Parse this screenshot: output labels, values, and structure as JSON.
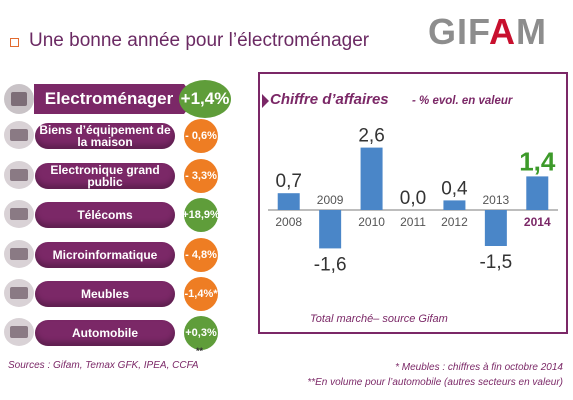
{
  "header": {
    "title": "Une bonne année pour l’électroménager",
    "logo_text_a": "GIF",
    "logo_text_b": "A",
    "logo_text_c": "M",
    "accent_color": "#e26b2f"
  },
  "categories": {
    "main": {
      "label": "Electroménager",
      "value": "+1,4%",
      "icon": "appliance-icon",
      "badge_color": "#5f9d3a"
    },
    "items": [
      {
        "label": "Biens d’équipement de la maison",
        "value": "- 0,6%",
        "icon": "home-equipment-icon",
        "badge_color": "#ee7d23"
      },
      {
        "label": "Electronique grand public",
        "value": "- 3,3%",
        "icon": "tv-icon",
        "badge_color": "#ee7d23"
      },
      {
        "label": "Télécoms",
        "value": "+18,9%",
        "icon": "phone-icon",
        "badge_color": "#5f9d3a"
      },
      {
        "label": "Microinformatique",
        "value": "- 4,8%",
        "icon": "laptop-icon",
        "badge_color": "#ee7d23"
      },
      {
        "label": "Meubles",
        "value": "-1,4%*",
        "icon": "furniture-icon",
        "badge_color": "#ee7d23"
      },
      {
        "label": "Automobile",
        "value": "+0,3%",
        "icon": "car-icon",
        "badge_color": "#5f9d3a"
      }
    ],
    "automobile_note_marker": "**"
  },
  "chart_data": {
    "type": "bar",
    "title": "Chiffre d’affaires",
    "subtitle": "- % evol. en valeur",
    "categories": [
      "2008",
      "2009",
      "2010",
      "2011",
      "2012",
      "2013",
      "2014"
    ],
    "values": [
      0.7,
      -1.6,
      2.6,
      0.0,
      0.4,
      -1.5,
      1.4
    ],
    "value_labels": [
      "0,7",
      "-1,6",
      "2,6",
      "0,0",
      "0,4",
      "-1,5",
      "1,4"
    ],
    "ylim": [
      -2,
      3
    ],
    "grid": false,
    "bar_color": "#4a86c8",
    "highlight_year_color": "#7b2867",
    "highlight_value_color": "#3d9a2a",
    "caption": "Total marché– source Gifam"
  },
  "footer": {
    "sources": "Sources : Gifam, Temax GFK, IPEA, CCFA",
    "note1": "* Meubles : chiffres à fin octobre 2014",
    "note2": "**En volume pour l’automobile (autres secteurs en valeur)"
  }
}
